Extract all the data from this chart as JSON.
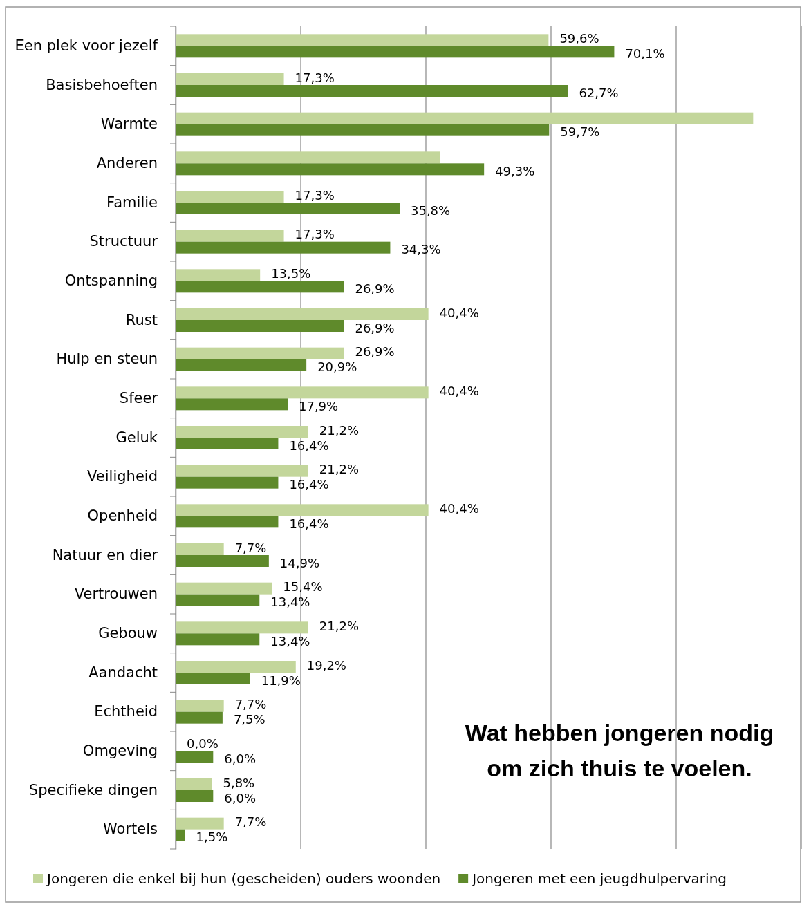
{
  "chart_data": {
    "type": "bar",
    "orientation": "horizontal",
    "title": "Wat hebben jongeren nodig om zich thuis te voelen.",
    "categories": [
      "Een plek voor jezelf",
      "Basisbehoeften",
      "Warmte",
      "Anderen",
      "Familie",
      "Structuur",
      "Ontspanning",
      "Rust",
      "Hulp en steun",
      "Sfeer",
      "Geluk",
      "Veiligheid",
      "Openheid",
      "Natuur en dier",
      "Vertrouwen",
      "Gebouw",
      "Aandacht",
      "Echtheid",
      "Omgeving",
      "Specifieke dingen",
      "Wortels"
    ],
    "series": [
      {
        "name": "Jongeren die enkel bij hun (gescheiden) ouders woonden",
        "color": "#c3d69b",
        "values": [
          59.6,
          17.3,
          92.3,
          42.3,
          17.3,
          17.3,
          13.5,
          40.4,
          26.9,
          40.4,
          21.2,
          21.2,
          40.4,
          7.7,
          15.4,
          21.2,
          19.2,
          7.7,
          0.0,
          5.8,
          7.7
        ],
        "value_labels": [
          "59,6%",
          "17,3%",
          null,
          null,
          "17,3%",
          "17,3%",
          "13,5%",
          "40,4%",
          "26,9%",
          "40,4%",
          "21,2%",
          "21,2%",
          "40,4%",
          "7,7%",
          "15,4%",
          "21,2%",
          "19,2%",
          "7,7%",
          "0,0%",
          "5,8%",
          "7,7%"
        ]
      },
      {
        "name": "Jongeren met een jeugdhulpervaring",
        "color": "#5f8a2b",
        "values": [
          70.1,
          62.7,
          59.7,
          49.3,
          35.8,
          34.3,
          26.9,
          26.9,
          20.9,
          17.9,
          16.4,
          16.4,
          16.4,
          14.9,
          13.4,
          13.4,
          11.9,
          7.5,
          6.0,
          6.0,
          1.5
        ],
        "value_labels": [
          "70,1%",
          "62,7%",
          "59,7%",
          "49,3%",
          "35,8%",
          "34,3%",
          "26,9%",
          "26,9%",
          "20,9%",
          "17,9%",
          "16,4%",
          "16,4%",
          "16,4%",
          "14,9%",
          "13,4%",
          "13,4%",
          "11,9%",
          "7,5%",
          "6,0%",
          "6,0%",
          "1,5%"
        ]
      }
    ],
    "xlim": [
      0,
      100
    ],
    "xticks": [
      {
        "value": 0,
        "label": null
      },
      {
        "value": 20,
        "label": null
      },
      {
        "value": 40,
        "label": null
      },
      {
        "value": 60,
        "label": null
      },
      {
        "value": 80,
        "label": null
      },
      {
        "value": 100,
        "label": null
      }
    ],
    "tick_labels": "y",
    "grid": "x",
    "legend": "bottom"
  }
}
